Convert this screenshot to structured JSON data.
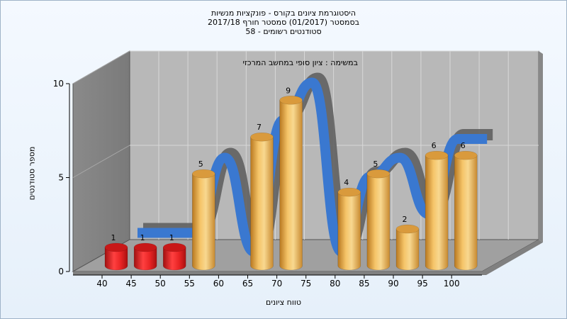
{
  "title_lines": [
    "היסטוגרמת ציונים בקורס - פונקציות מנשיות",
    "בסמסטר  (01/2017)  סמסטר חורף 2017/18",
    "סטודנטים רשומים - 58"
  ],
  "chart_data": {
    "type": "bar",
    "xlabel": "טווח ציונים",
    "ylabel": "מספר סטודנטים",
    "annotation": "במשימה : ציון סופי במחשב המרכזי",
    "x_ticks": [
      "40",
      "45",
      "50",
      "55",
      "60",
      "65",
      "70",
      "75",
      "80",
      "85",
      "90",
      "95",
      "100"
    ],
    "y_ticks": [
      0,
      5,
      10
    ],
    "ylim": [
      0,
      10
    ],
    "grid": true,
    "bars": [
      {
        "x": 40,
        "value": 1,
        "color": "#d92020"
      },
      {
        "x": 45,
        "value": 1,
        "color": "#d92020"
      },
      {
        "x": 50,
        "value": 1,
        "color": "#d92020"
      },
      {
        "x": 55,
        "value": 5,
        "color": "#e0a040"
      },
      {
        "x": 65,
        "value": 7,
        "color": "#e0a040"
      },
      {
        "x": 70,
        "value": 9,
        "color": "#e0a040"
      },
      {
        "x": 80,
        "value": 4,
        "color": "#e0a040"
      },
      {
        "x": 85,
        "value": 5,
        "color": "#e0a040"
      },
      {
        "x": 90,
        "value": 2,
        "color": "#e0a040"
      },
      {
        "x": 95,
        "value": 6,
        "color": "#e0a040"
      },
      {
        "x": 100,
        "value": 6,
        "color": "#e0a040"
      }
    ],
    "curve_colors": [
      "#3a78d0",
      "#606060"
    ]
  }
}
